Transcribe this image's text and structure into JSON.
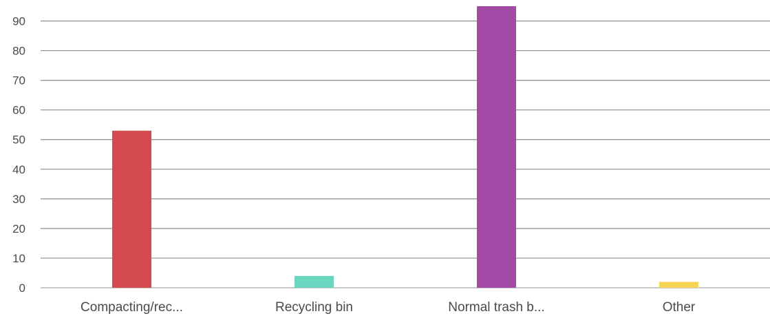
{
  "chart_data": {
    "type": "bar",
    "categories": [
      "Compacting/rec...",
      "Recycling bin",
      "Normal trash b...",
      "Other"
    ],
    "values": [
      53,
      4,
      95,
      2
    ],
    "colors": [
      "#d54a4f",
      "#6bd6bf",
      "#a34aa6",
      "#f6d456"
    ],
    "title": "",
    "xlabel": "",
    "ylabel": "",
    "ylim": [
      0,
      95
    ],
    "yticks": [
      0,
      10,
      20,
      30,
      40,
      50,
      60,
      70,
      80,
      90
    ],
    "grid": true,
    "legend": "none"
  }
}
